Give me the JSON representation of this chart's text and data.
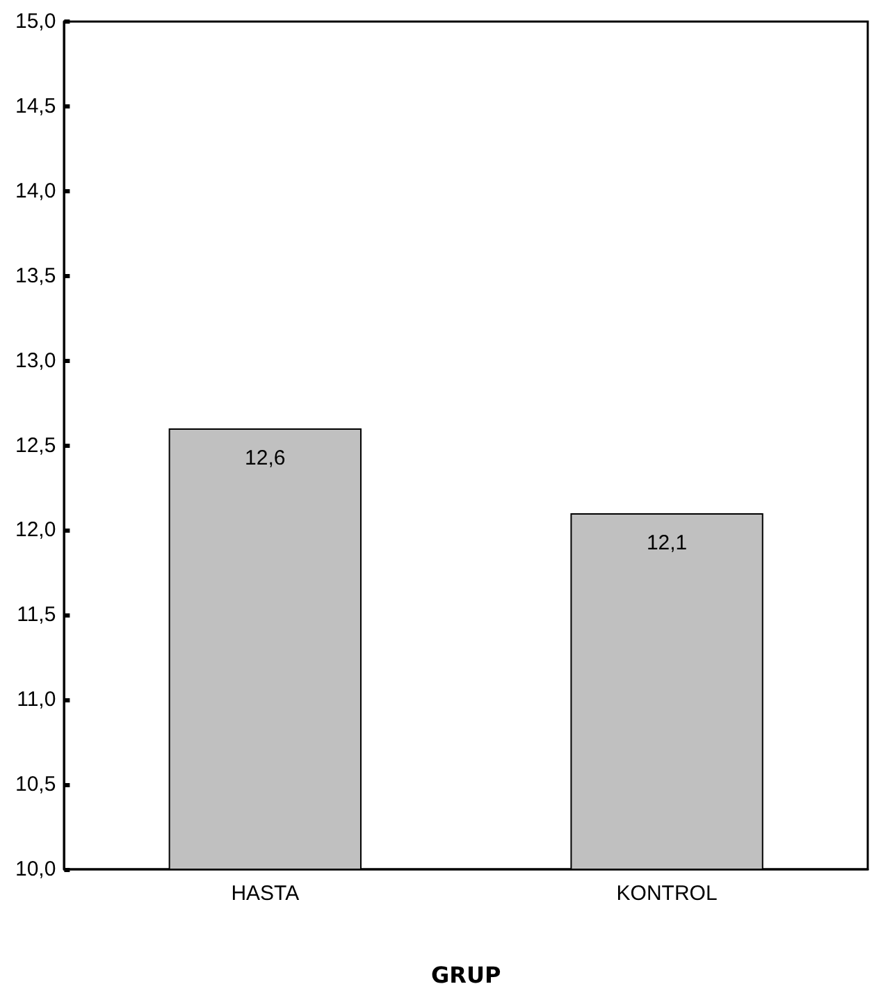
{
  "chart_data": {
    "type": "bar",
    "xlabel": "GRUP",
    "categories": [
      "HASTA",
      "KONTROL"
    ],
    "values": [
      12.6,
      12.1
    ],
    "value_labels": [
      "12,6",
      "12,1"
    ],
    "color": "#c0c0c0",
    "ylim": [
      10,
      15
    ],
    "yticks": [
      {
        "value": 10,
        "label": "10,0"
      },
      {
        "value": 10.5,
        "label": "10,5"
      },
      {
        "value": 11,
        "label": "11,0"
      },
      {
        "value": 11.5,
        "label": "11,5"
      },
      {
        "value": 12,
        "label": "12,0"
      },
      {
        "value": 12.5,
        "label": "12,5"
      },
      {
        "value": 13,
        "label": "13,0"
      },
      {
        "value": 13.5,
        "label": "13,5"
      },
      {
        "value": 14,
        "label": "14,0"
      },
      {
        "value": 14.5,
        "label": "14,5"
      },
      {
        "value": 15,
        "label": "15,0"
      }
    ],
    "grid": false
  }
}
